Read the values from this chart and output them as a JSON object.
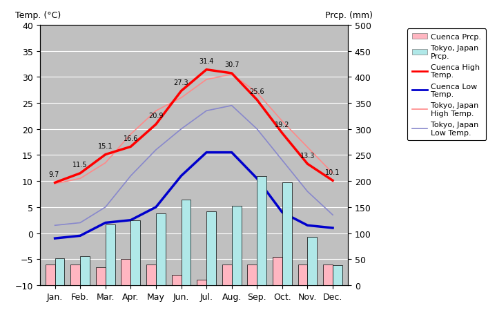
{
  "months": [
    "Jan.",
    "Feb.",
    "Mar.",
    "Apr.",
    "May",
    "Jun.",
    "Jul.",
    "Aug.",
    "Sep.",
    "Oct.",
    "Nov.",
    "Dec."
  ],
  "cuenca_high": [
    9.7,
    11.5,
    15.1,
    16.6,
    20.9,
    27.3,
    31.4,
    30.7,
    25.6,
    19.2,
    13.3,
    10.1
  ],
  "cuenca_low_full": [
    -1.0,
    -0.5,
    2.0,
    2.5,
    5.0,
    11.0,
    15.5,
    15.5,
    10.5,
    4.0,
    1.5,
    1.0
  ],
  "tokyo_high": [
    9.5,
    10.5,
    13.5,
    19.0,
    23.5,
    26.0,
    29.5,
    30.5,
    27.0,
    21.5,
    16.5,
    11.5
  ],
  "tokyo_low": [
    1.5,
    2.0,
    5.0,
    11.0,
    16.0,
    20.0,
    23.5,
    24.5,
    20.0,
    14.0,
    8.0,
    3.5
  ],
  "cuenca_prcp_mm": [
    40,
    40,
    35,
    50,
    40,
    20,
    10,
    40,
    40,
    55,
    40,
    40
  ],
  "tokyo_prcp_mm": [
    52,
    56,
    117,
    125,
    138,
    165,
    142,
    152,
    210,
    198,
    93,
    39
  ],
  "temp_ylim": [
    -10,
    40
  ],
  "prcp_ylim": [
    0,
    500
  ],
  "cuenca_high_color": "#ff0000",
  "cuenca_low_color": "#0000cc",
  "tokyo_high_color": "#ff8888",
  "tokyo_low_color": "#8888cc",
  "cuenca_prcp_color": "#ffb6c1",
  "tokyo_prcp_color": "#b0e8e8",
  "plot_bg": "#c0c0c0",
  "title_left": "Temp. (°C)",
  "title_right": "Prcp. (mm)",
  "legend_labels": [
    "Cuenca Prcp.",
    "Tokyo, Japan\nPrcp.",
    "Cuenca High\nTemp.",
    "Cuenca Low\nTemp.",
    "Tokyo, Japan\nHigh Temp.",
    "Tokyo, Japan\nLow Temp."
  ]
}
